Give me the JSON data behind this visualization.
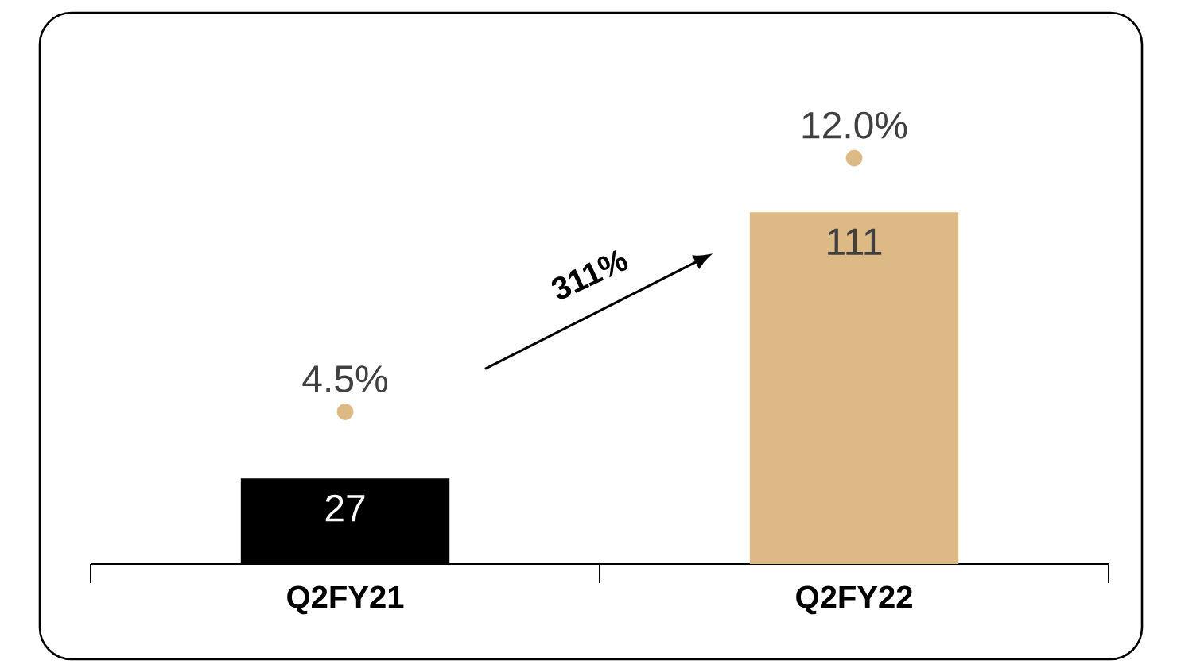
{
  "chart_data": {
    "type": "bar",
    "categories": [
      "Q2FY21",
      "Q2FY22"
    ],
    "series": [
      {
        "colors": [
          "#000000",
          "#dcb985"
        ],
        "values": [
          27,
          111
        ],
        "value_labels": [
          "27",
          "111"
        ]
      },
      {
        "type": "scatter",
        "axis": "y2",
        "color": "#dcb985",
        "values": [
          4.5,
          12.0
        ],
        "value_labels": [
          "4.5%",
          "12.0%"
        ]
      }
    ],
    "ylim": [
      0,
      174
    ],
    "y2lim": [
      0,
      16.3
    ],
    "annotations": [
      "311%"
    ],
    "tick_labels": "x"
  }
}
